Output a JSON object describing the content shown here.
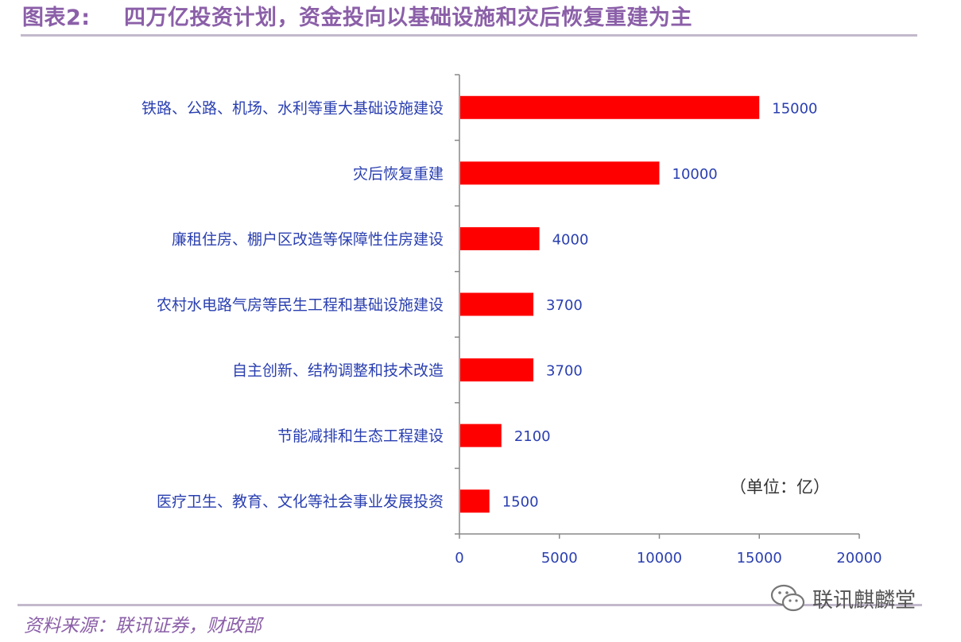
{
  "title": {
    "prefix": "图表2:",
    "text": "四万亿投资计划，资金投向以基础设施和灾后恢复重建为主"
  },
  "unit_note": "（单位：亿）",
  "source": "资料来源：联讯证券，财政部",
  "watermark": {
    "text": "联讯麒麟堂",
    "icon": "wechat-icon"
  },
  "colors": {
    "bar": "#ff0000",
    "title": "#8b5fa8",
    "label": "#2a3fb0"
  },
  "chart_data": {
    "type": "bar",
    "orientation": "horizontal",
    "categories": [
      "铁路、公路、机场、水利等重大基础设施建设",
      "灾后恢复重建",
      "廉租住房、棚户区改造等保障性住房建设",
      "农村水电路气房等民生工程和基础设施建设",
      "自主创新、结构调整和技术改造",
      "节能减排和生态工程建设",
      "医疗卫生、教育、文化等社会事业发展投资"
    ],
    "values": [
      15000,
      10000,
      4000,
      3700,
      3700,
      2100,
      1500
    ],
    "value_labels": [
      "15000",
      "10000",
      "4000",
      "3700",
      "3700",
      "2100",
      "1500"
    ],
    "xlim": [
      0,
      20000
    ],
    "x_ticks": [
      0,
      5000,
      10000,
      15000,
      20000
    ],
    "x_tick_labels": [
      "0",
      "5000",
      "10000",
      "15000",
      "20000"
    ],
    "grid": false,
    "legend": "none"
  }
}
